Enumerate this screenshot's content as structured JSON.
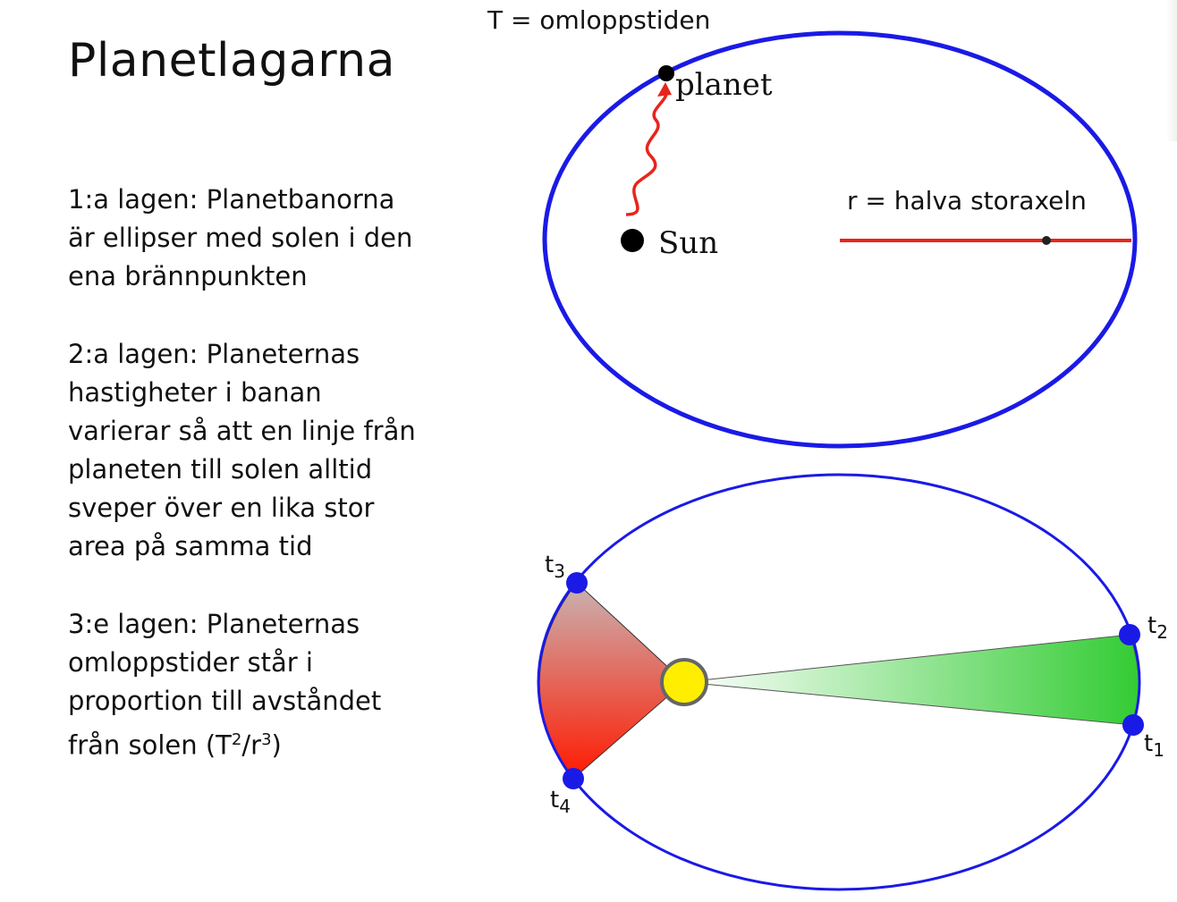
{
  "slide": {
    "title": "Planetlagarna",
    "laws": [
      {
        "prefix": "1:a lagen: ",
        "text": "Planetbanorna är ellipser med solen i den ena brännpunkten"
      },
      {
        "prefix": "2:a lagen: ",
        "text": "Planeternas hastigheter i banan varierar så att en linje från planeten till solen alltid sveper över en lika stor area på samma tid"
      },
      {
        "prefix": "3:e lagen: ",
        "text": "Planeternas omloppstider står i proportion till avståndet från solen (",
        "formula_T": "T",
        "formula_exp1": "2",
        "formula_slash": "/",
        "formula_r": "r",
        "formula_exp2": "3",
        "formula_close": ")"
      }
    ]
  },
  "orbit_diagram": {
    "period_label": "T = omloppstiden",
    "planet_label": "planet",
    "sun_label": "Sun",
    "semi_major_label": "r = halva storaxeln",
    "orbit_color": "#1a1ae6",
    "arrow_color": "#e8251b",
    "axis_color": "#e8251b"
  },
  "area_diagram": {
    "t1": "t",
    "t1_sub": "1",
    "t2": "t",
    "t2_sub": "2",
    "t3": "t",
    "t3_sub": "3",
    "t4": "t",
    "t4_sub": "4",
    "orbit_color": "#1a1ae6",
    "sun_color": "#ffee00",
    "sector_far_color": "#33cc33",
    "sector_near_color": "#ff1a00"
  }
}
